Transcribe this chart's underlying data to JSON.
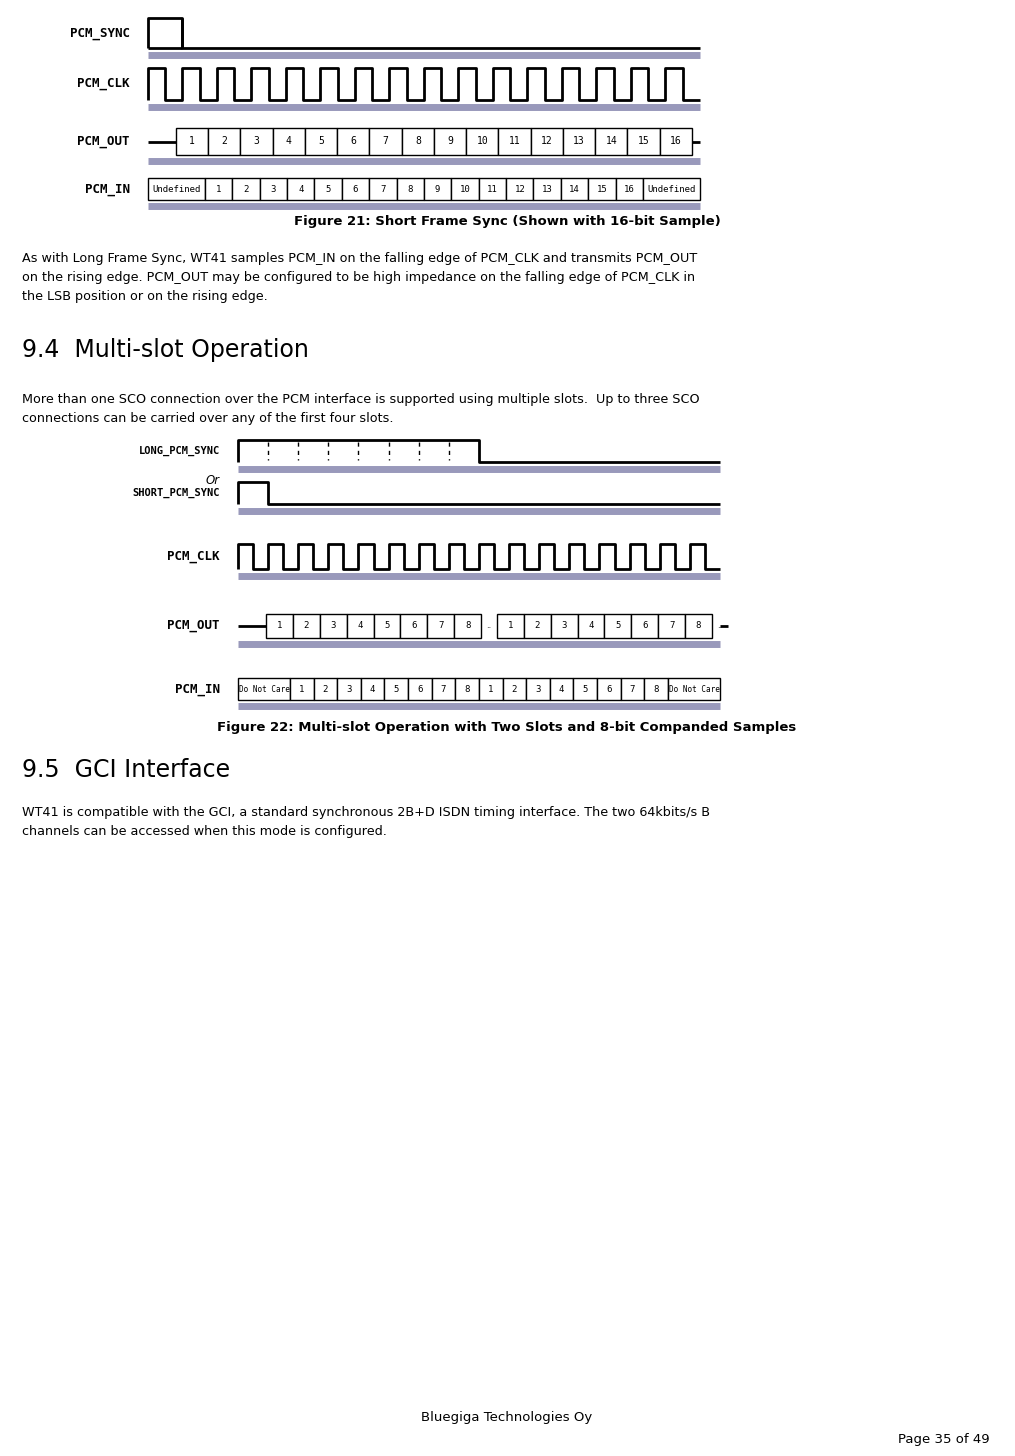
{
  "fig_width": 10.15,
  "fig_height": 14.56,
  "bg_color": "#ffffff",
  "title_fig21": "Figure 21: Short Frame Sync (Shown with 16-bit Sample)",
  "title_fig22": "Figure 22: Multi-slot Operation with Two Slots and 8-bit Companded Samples",
  "section_94_title": "9.4  Multi-slot Operation",
  "section_95_title": "9.5  GCI Interface",
  "para1_line1": "As with Long Frame Sync, WT41 samples PCM_IN on the falling edge of PCM_CLK and transmits PCM_OUT",
  "para1_line2": "on the rising edge. PCM_OUT may be configured to be high impedance on the falling edge of PCM_CLK in",
  "para1_line3": "the LSB position or on the rising edge.",
  "para2_line1": "More than one SCO connection over the PCM interface is supported using multiple slots.  Up to three SCO",
  "para2_line2": "connections can be carried over any of the first four slots.",
  "para3_line1": "WT41 is compatible with the GCI, a standard synchronous 2B+D ISDN timing interface. The two 64kbits/s B",
  "para3_line2": "channels can be accessed when this mode is configured.",
  "footer_left": "Bluegiga Technologies Oy",
  "footer_right": "Page 35 of 49",
  "shadow_color": "#9999bb"
}
